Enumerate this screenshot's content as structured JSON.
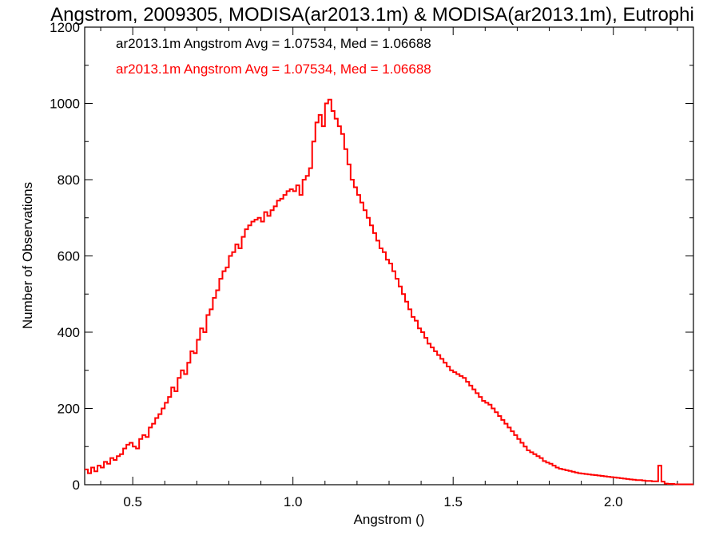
{
  "chart_data": {
    "type": "histogram",
    "title": "Angstrom, 2009305, MODISA(ar2013.1m) & MODISA(ar2013.1m), Eutrophi",
    "xlabel": "Angstrom ()",
    "ylabel": "Number of Observations",
    "xlim": [
      0.35,
      2.25
    ],
    "ylim": [
      0,
      1200
    ],
    "x_ticks": [
      "0.5",
      "1.0",
      "1.5",
      "2.0"
    ],
    "y_ticks": [
      "0",
      "200",
      "400",
      "600",
      "800",
      "1000",
      "1200"
    ],
    "annotations": [
      {
        "text": "ar2013.1m Angstrom Avg = 1.07534, Med = 1.06688",
        "color": "#000000"
      },
      {
        "text": "ar2013.1m Angstrom Avg = 1.07534, Med = 1.06688",
        "color": "#ff0000"
      }
    ],
    "series": [
      {
        "color": "#ff0000",
        "bin_width": 0.01,
        "x": [
          0.35,
          0.36,
          0.37,
          0.38,
          0.39,
          0.4,
          0.41,
          0.42,
          0.43,
          0.44,
          0.45,
          0.46,
          0.47,
          0.48,
          0.49,
          0.5,
          0.51,
          0.52,
          0.53,
          0.54,
          0.55,
          0.56,
          0.57,
          0.58,
          0.59,
          0.6,
          0.61,
          0.62,
          0.63,
          0.64,
          0.65,
          0.66,
          0.67,
          0.68,
          0.69,
          0.7,
          0.71,
          0.72,
          0.73,
          0.74,
          0.75,
          0.76,
          0.77,
          0.78,
          0.79,
          0.8,
          0.81,
          0.82,
          0.83,
          0.84,
          0.85,
          0.86,
          0.87,
          0.88,
          0.89,
          0.9,
          0.91,
          0.92,
          0.93,
          0.94,
          0.95,
          0.96,
          0.97,
          0.98,
          0.99,
          1.0,
          1.01,
          1.02,
          1.03,
          1.04,
          1.05,
          1.06,
          1.07,
          1.08,
          1.09,
          1.1,
          1.11,
          1.12,
          1.13,
          1.14,
          1.15,
          1.16,
          1.17,
          1.18,
          1.19,
          1.2,
          1.21,
          1.22,
          1.23,
          1.24,
          1.25,
          1.26,
          1.27,
          1.28,
          1.29,
          1.3,
          1.31,
          1.32,
          1.33,
          1.34,
          1.35,
          1.36,
          1.37,
          1.38,
          1.39,
          1.4,
          1.41,
          1.42,
          1.43,
          1.44,
          1.45,
          1.46,
          1.47,
          1.48,
          1.49,
          1.5,
          1.51,
          1.52,
          1.53,
          1.54,
          1.55,
          1.56,
          1.57,
          1.58,
          1.59,
          1.6,
          1.61,
          1.62,
          1.63,
          1.64,
          1.65,
          1.66,
          1.67,
          1.68,
          1.69,
          1.7,
          1.71,
          1.72,
          1.73,
          1.74,
          1.75,
          1.76,
          1.77,
          1.78,
          1.79,
          1.8,
          1.81,
          1.82,
          1.83,
          1.84,
          1.85,
          1.86,
          1.87,
          1.88,
          1.89,
          1.9,
          1.91,
          1.92,
          1.93,
          1.94,
          1.95,
          1.96,
          1.97,
          1.98,
          1.99,
          2.0,
          2.01,
          2.02,
          2.03,
          2.04,
          2.05,
          2.06,
          2.07,
          2.08,
          2.09,
          2.1,
          2.11,
          2.12,
          2.13,
          2.14,
          2.15,
          2.16,
          2.17,
          2.18,
          2.19,
          2.2,
          2.21,
          2.22,
          2.23,
          2.24
        ],
        "values": [
          40,
          30,
          45,
          35,
          50,
          45,
          60,
          55,
          70,
          65,
          75,
          80,
          95,
          105,
          110,
          100,
          95,
          120,
          130,
          125,
          150,
          160,
          175,
          185,
          200,
          215,
          230,
          255,
          245,
          280,
          300,
          290,
          320,
          350,
          345,
          380,
          410,
          400,
          445,
          460,
          490,
          510,
          540,
          560,
          570,
          600,
          610,
          630,
          620,
          650,
          670,
          680,
          690,
          695,
          700,
          690,
          715,
          705,
          720,
          730,
          745,
          750,
          760,
          770,
          775,
          770,
          785,
          760,
          800,
          810,
          830,
          900,
          950,
          970,
          940,
          1000,
          1010,
          980,
          960,
          940,
          920,
          880,
          840,
          800,
          780,
          760,
          740,
          720,
          700,
          680,
          660,
          640,
          620,
          610,
          590,
          580,
          560,
          540,
          520,
          500,
          480,
          460,
          440,
          430,
          410,
          400,
          385,
          370,
          360,
          350,
          340,
          330,
          320,
          310,
          300,
          295,
          290,
          285,
          280,
          270,
          260,
          250,
          240,
          230,
          220,
          215,
          210,
          200,
          190,
          180,
          170,
          160,
          150,
          140,
          130,
          120,
          110,
          100,
          90,
          85,
          80,
          75,
          70,
          62,
          58,
          55,
          50,
          45,
          42,
          40,
          38,
          36,
          34,
          32,
          30,
          29,
          28,
          27,
          26,
          25,
          24,
          23,
          22,
          21,
          20,
          19,
          18,
          17,
          16,
          15,
          14,
          13,
          12,
          12,
          11,
          10,
          10,
          9,
          9,
          50,
          8,
          3,
          2,
          2,
          1,
          1,
          1,
          1,
          1,
          1
        ]
      }
    ]
  }
}
